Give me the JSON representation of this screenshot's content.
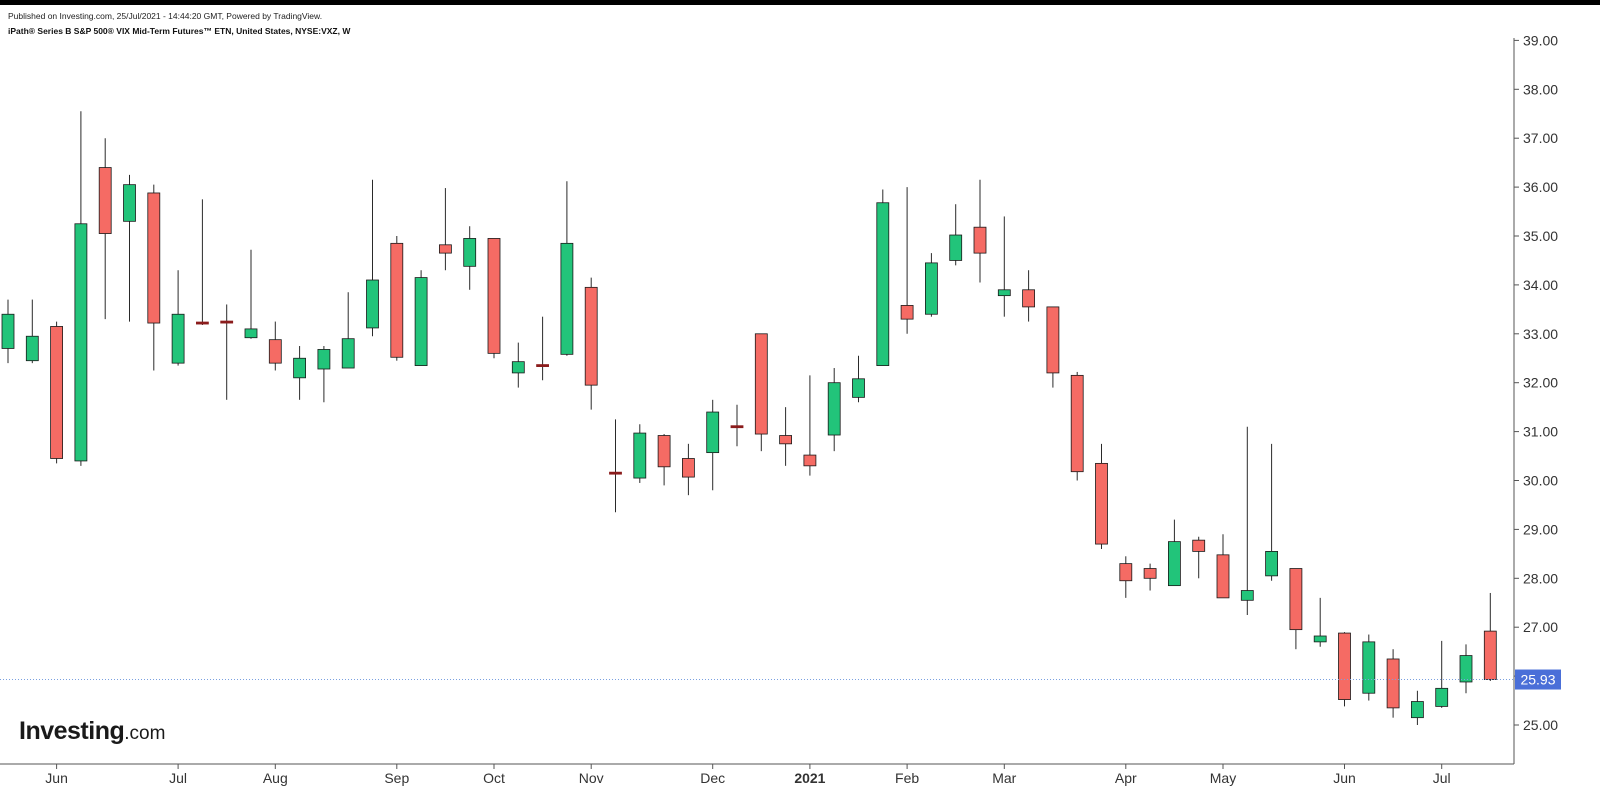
{
  "header": {
    "published": "Published on Investing.com, 25/Jul/2021 - 14:44:20 GMT, Powered by TradingView.",
    "title": "iPath® Series B S&P 500® VIX Mid-Term Futures™ ETN, United States, NYSE:VXZ, W"
  },
  "logo": {
    "brand": "Investing",
    "suffix": ".com"
  },
  "colors": {
    "up": "#22c47a",
    "down": "#f56b64",
    "doji": "#8b1c1c",
    "last_price_bg": "#4a6fd8",
    "last_price_line": "#7aa0e0",
    "axis": "#555555",
    "text": "#333333"
  },
  "chart_data": {
    "type": "candlestick",
    "interval": "W",
    "y_axis_position": "right",
    "grid": false,
    "ylim": [
      24.2,
      39.1
    ],
    "y_ticks": [
      "25.00",
      "26.00",
      "27.00",
      "28.00",
      "29.00",
      "30.00",
      "31.00",
      "32.00",
      "33.00",
      "34.00",
      "35.00",
      "36.00",
      "37.00",
      "38.00",
      "39.00"
    ],
    "x_labels": [
      {
        "label": "Jun",
        "week": 2,
        "bold": false
      },
      {
        "label": "Jul",
        "week": 7,
        "bold": false
      },
      {
        "label": "Aug",
        "week": 11,
        "bold": false
      },
      {
        "label": "Sep",
        "week": 16,
        "bold": false
      },
      {
        "label": "Oct",
        "week": 20,
        "bold": false
      },
      {
        "label": "Nov",
        "week": 24,
        "bold": false
      },
      {
        "label": "Dec",
        "week": 29,
        "bold": false
      },
      {
        "label": "2021",
        "week": 33,
        "bold": true
      },
      {
        "label": "Feb",
        "week": 37,
        "bold": false
      },
      {
        "label": "Mar",
        "week": 41,
        "bold": false
      },
      {
        "label": "Apr",
        "week": 46,
        "bold": false
      },
      {
        "label": "May",
        "week": 50,
        "bold": false
      },
      {
        "label": "Jun",
        "week": 55,
        "bold": false
      },
      {
        "label": "Jul",
        "week": 59,
        "bold": false
      }
    ],
    "last_price": 25.93,
    "last_price_label": "25.93",
    "candles": [
      {
        "o": 32.7,
        "h": 33.7,
        "l": 32.4,
        "c": 33.4
      },
      {
        "o": 32.45,
        "h": 33.7,
        "l": 32.4,
        "c": 32.95
      },
      {
        "o": 33.15,
        "h": 33.25,
        "l": 30.35,
        "c": 30.45
      },
      {
        "o": 30.4,
        "h": 37.55,
        "l": 30.3,
        "c": 35.25
      },
      {
        "o": 36.4,
        "h": 37.0,
        "l": 33.3,
        "c": 35.05
      },
      {
        "o": 35.3,
        "h": 36.25,
        "l": 33.25,
        "c": 36.05
      },
      {
        "o": 35.88,
        "h": 36.05,
        "l": 32.25,
        "c": 33.22
      },
      {
        "o": 32.4,
        "h": 34.3,
        "l": 32.35,
        "c": 33.4
      },
      {
        "o": 33.18,
        "h": 35.75,
        "l": 33.18,
        "c": 33.22
      },
      {
        "o": 33.2,
        "h": 33.6,
        "l": 31.65,
        "c": 33.24
      },
      {
        "o": 32.92,
        "h": 34.72,
        "l": 32.9,
        "c": 33.1
      },
      {
        "o": 32.88,
        "h": 33.25,
        "l": 32.25,
        "c": 32.4
      },
      {
        "o": 32.1,
        "h": 32.75,
        "l": 31.65,
        "c": 32.5
      },
      {
        "o": 32.28,
        "h": 32.75,
        "l": 31.6,
        "c": 32.68
      },
      {
        "o": 32.3,
        "h": 33.85,
        "l": 32.3,
        "c": 32.9
      },
      {
        "o": 33.12,
        "h": 36.15,
        "l": 32.95,
        "c": 34.1
      },
      {
        "o": 34.85,
        "h": 35.0,
        "l": 32.45,
        "c": 32.52
      },
      {
        "o": 32.35,
        "h": 34.3,
        "l": 32.35,
        "c": 34.15
      },
      {
        "o": 34.82,
        "h": 35.98,
        "l": 34.3,
        "c": 34.65
      },
      {
        "o": 34.38,
        "h": 35.2,
        "l": 33.9,
        "c": 34.95
      },
      {
        "o": 34.95,
        "h": 34.95,
        "l": 32.5,
        "c": 32.6
      },
      {
        "o": 32.2,
        "h": 32.82,
        "l": 31.9,
        "c": 32.43
      },
      {
        "o": 32.35,
        "h": 33.35,
        "l": 32.05,
        "c": 32.32
      },
      {
        "o": 32.58,
        "h": 36.12,
        "l": 32.55,
        "c": 34.85
      },
      {
        "o": 33.95,
        "h": 34.15,
        "l": 31.45,
        "c": 31.95
      },
      {
        "o": 30.15,
        "h": 31.25,
        "l": 29.35,
        "c": 30.12
      },
      {
        "o": 30.05,
        "h": 31.15,
        "l": 29.95,
        "c": 30.97
      },
      {
        "o": 30.92,
        "h": 30.95,
        "l": 29.9,
        "c": 30.28
      },
      {
        "o": 30.45,
        "h": 30.75,
        "l": 29.7,
        "c": 30.07
      },
      {
        "o": 30.57,
        "h": 31.65,
        "l": 29.8,
        "c": 31.4
      },
      {
        "o": 31.1,
        "h": 31.55,
        "l": 30.7,
        "c": 31.08
      },
      {
        "o": 33.0,
        "h": 33.0,
        "l": 30.6,
        "c": 30.95
      },
      {
        "o": 30.92,
        "h": 31.5,
        "l": 30.3,
        "c": 30.75
      },
      {
        "o": 30.52,
        "h": 32.15,
        "l": 30.1,
        "c": 30.3
      },
      {
        "o": 30.93,
        "h": 32.3,
        "l": 30.6,
        "c": 32.0
      },
      {
        "o": 31.7,
        "h": 32.55,
        "l": 31.6,
        "c": 32.08
      },
      {
        "o": 32.35,
        "h": 35.95,
        "l": 32.35,
        "c": 35.68
      },
      {
        "o": 33.58,
        "h": 36.0,
        "l": 33.0,
        "c": 33.3
      },
      {
        "o": 33.4,
        "h": 34.65,
        "l": 33.35,
        "c": 34.45
      },
      {
        "o": 34.5,
        "h": 35.65,
        "l": 34.4,
        "c": 35.02
      },
      {
        "o": 35.18,
        "h": 36.15,
        "l": 34.05,
        "c": 34.65
      },
      {
        "o": 33.78,
        "h": 35.4,
        "l": 33.35,
        "c": 33.9
      },
      {
        "o": 33.9,
        "h": 34.3,
        "l": 33.25,
        "c": 33.55
      },
      {
        "o": 33.55,
        "h": 33.55,
        "l": 31.9,
        "c": 32.2
      },
      {
        "o": 32.15,
        "h": 32.22,
        "l": 30.0,
        "c": 30.18
      },
      {
        "o": 30.35,
        "h": 30.75,
        "l": 28.6,
        "c": 28.7
      },
      {
        "o": 28.3,
        "h": 28.45,
        "l": 27.6,
        "c": 27.95
      },
      {
        "o": 28.2,
        "h": 28.3,
        "l": 27.75,
        "c": 28.0
      },
      {
        "o": 27.85,
        "h": 29.2,
        "l": 27.85,
        "c": 28.75
      },
      {
        "o": 28.78,
        "h": 28.85,
        "l": 28.0,
        "c": 28.55
      },
      {
        "o": 28.48,
        "h": 28.9,
        "l": 27.6,
        "c": 27.6
      },
      {
        "o": 27.55,
        "h": 31.1,
        "l": 27.25,
        "c": 27.75
      },
      {
        "o": 28.05,
        "h": 30.75,
        "l": 27.95,
        "c": 28.55
      },
      {
        "o": 28.2,
        "h": 28.2,
        "l": 26.55,
        "c": 26.95
      },
      {
        "o": 26.7,
        "h": 27.6,
        "l": 26.6,
        "c": 26.82
      },
      {
        "o": 26.88,
        "h": 26.9,
        "l": 25.38,
        "c": 25.52
      },
      {
        "o": 25.65,
        "h": 26.85,
        "l": 25.5,
        "c": 26.7
      },
      {
        "o": 26.35,
        "h": 26.55,
        "l": 25.15,
        "c": 25.35
      },
      {
        "o": 25.15,
        "h": 25.7,
        "l": 25.0,
        "c": 25.48
      },
      {
        "o": 25.38,
        "h": 26.72,
        "l": 25.35,
        "c": 25.75
      },
      {
        "o": 25.88,
        "h": 26.65,
        "l": 25.65,
        "c": 26.42
      },
      {
        "o": 26.92,
        "h": 27.7,
        "l": 25.9,
        "c": 25.93
      }
    ]
  }
}
